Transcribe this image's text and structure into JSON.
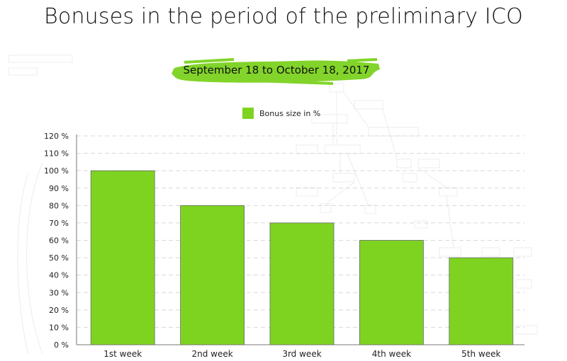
{
  "title": "Bonuses in the period of the preliminary ICO",
  "period": "September 18 to October 18, 2017",
  "colors": {
    "bar": "#7ed321",
    "brush": "#82d42a",
    "grid": "#d8d8d8",
    "axis": "#777777"
  },
  "chart_data": {
    "type": "bar",
    "categories": [
      "1st week",
      "2nd week",
      "3rd week",
      "4th week",
      "5th week"
    ],
    "series": [
      {
        "name": "Bonus size in %",
        "values": [
          100,
          80,
          70,
          60,
          50
        ]
      }
    ],
    "yticks": [
      "0 %",
      "10 %",
      "20 %",
      "30 %",
      "40 %",
      "50 %",
      "60 %",
      "70 %",
      "80 %",
      "90 %",
      "100 %",
      "110 %",
      "120 %"
    ],
    "ylim": [
      0,
      120
    ],
    "grid": true,
    "legend": "top-center"
  }
}
